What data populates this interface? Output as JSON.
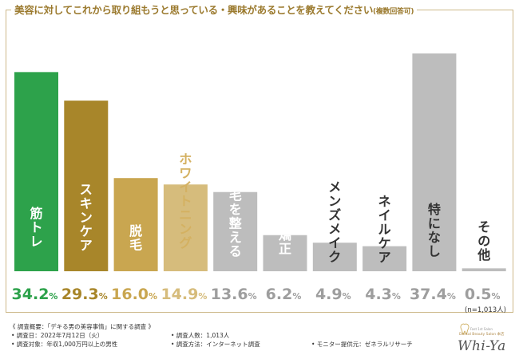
{
  "chart_data": {
    "type": "bar",
    "title": "美容に対してこれから取り組もうと思っている・興味があることを教えてください",
    "title_suffix": "(複数回答可)",
    "categories": [
      "筋トレ",
      "スキンケア",
      "脱毛",
      "ホワイトニング",
      "眉毛を整える",
      "歯列矯正",
      "メンズメイク",
      "ネイルケア",
      "特になし",
      "その他"
    ],
    "values": [
      34.2,
      29.3,
      16.0,
      14.9,
      13.6,
      6.2,
      4.9,
      4.3,
      37.4,
      0.5
    ],
    "value_labels": [
      "34.2%",
      "29.3%",
      "16.0%",
      "14.9%",
      "13.6%",
      "6.2%",
      "4.9%",
      "4.3%",
      "37.4%",
      "0.5%"
    ],
    "unit": "%",
    "sample_note": "(n=1,013人)",
    "ylim": [
      0,
      40
    ],
    "grid": false,
    "colors": {
      "bars": [
        "#2da24b",
        "#a8862a",
        "#c9a650",
        "#d6bc7c",
        "#bdbdbd",
        "#bdbdbd",
        "#bdbdbd",
        "#bdbdbd",
        "#bdbdbd",
        "#bdbdbd"
      ],
      "value_text": [
        "#2da24b",
        "#a8862a",
        "#c9a650",
        "#d6bc7c",
        "#9e9e9e",
        "#9e9e9e",
        "#9e9e9e",
        "#9e9e9e",
        "#9e9e9e",
        "#9e9e9e"
      ],
      "label_inside": "#ffffff",
      "label_outside": [
        "#d4b161",
        "#333333"
      ],
      "frame": "#cdb98a",
      "title": "#9b7a2e"
    }
  },
  "notes": {
    "survey_overview": "《 調査概要：「デキる男の美容事情」に関する調査 》",
    "survey_date": "• 調査日：2022年7月12日（火）",
    "respondents": "• 調査人数：1,013人",
    "target": "• 調査対象：年収1,000万円以上の男性",
    "method": "• 調査方法：インターネット調査",
    "provider": "• モニター提供元：ゼネラルリサーチ"
  },
  "logo": {
    "brand": "Whi-Ya",
    "sub": "Dental Beauty Salon 本店",
    "top": "Fast 1st Salon"
  }
}
